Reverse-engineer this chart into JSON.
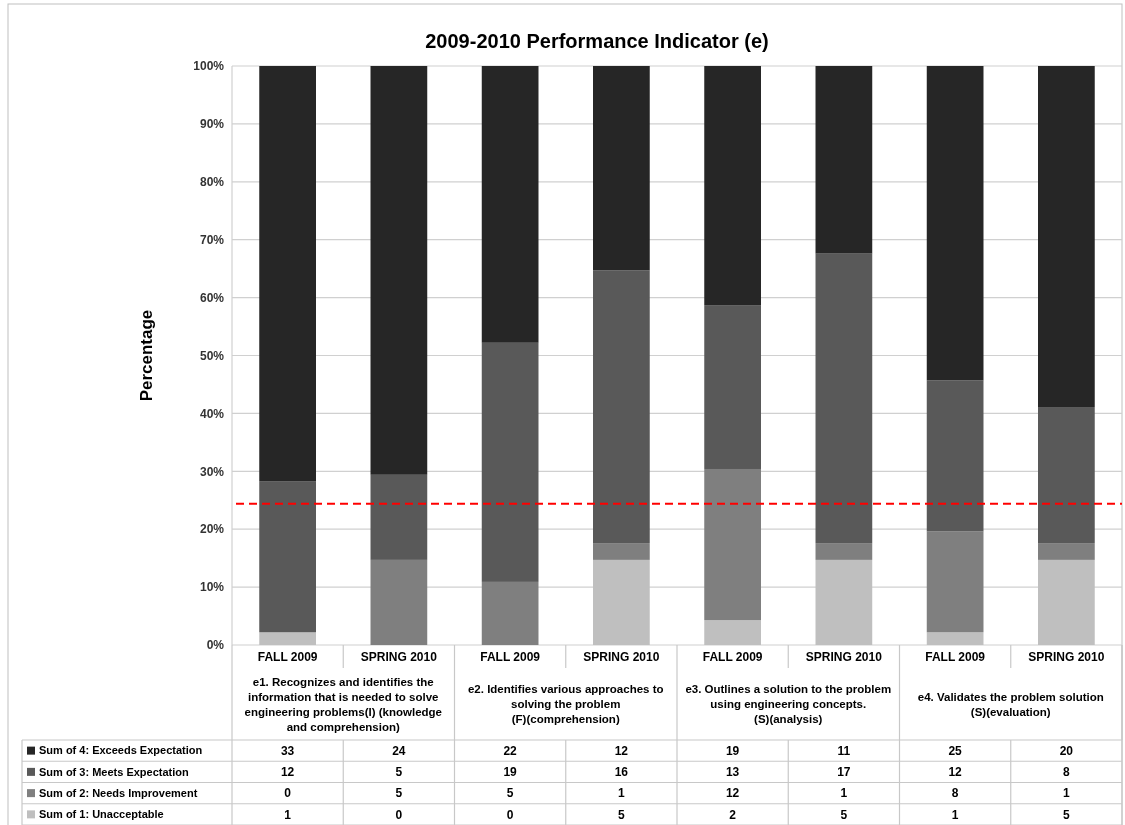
{
  "chart_data": [
    {
      "type": "bar",
      "title": "2009-2010 Performance Indicator (e)",
      "ylabel": "Percentage",
      "categories": [
        "FALL 2009",
        "SPRING 2010",
        "FALL 2009",
        "SPRING 2010",
        "FALL 2009",
        "SPRING 2010",
        "FALL 2009",
        "SPRING 2010"
      ],
      "annotations": [
        "e1. Recognizes and identifies the information that is needed to solve engineering problems(I) (knowledge and comprehension)",
        "e2. Identifies various approaches to solving the problem (F)(comprehension)",
        "e3. Outlines a solution to the problem using engineering concepts. (S)(analysis)",
        "e4. Validates the problem solution (S)(evaluation)"
      ],
      "series": [
        {
          "name": "Sum of 1: Unacceptable",
          "color": "#bfbfbf",
          "values": [
            2.2,
            0,
            0,
            14.7,
            4.3,
            14.7,
            2.2,
            14.7
          ]
        },
        {
          "name": "Sum of 2: Needs Improvement",
          "color": "#7f7f7f",
          "values": [
            0,
            14.7,
            10.9,
            2.9,
            26.1,
            2.9,
            17.4,
            2.9
          ]
        },
        {
          "name": "Sum of 3: Meets Expectation",
          "color": "#595959",
          "values": [
            26.1,
            14.7,
            41.3,
            47.1,
            28.3,
            50.0,
            26.1,
            23.5
          ]
        },
        {
          "name": "Sum of 4: Exceeds Expectation",
          "color": "#262626",
          "values": [
            71.7,
            70.6,
            47.8,
            35.3,
            41.3,
            32.4,
            54.3,
            58.9
          ]
        }
      ],
      "stacked": true,
      "ylim": [
        0,
        100
      ],
      "yticks": [
        {
          "value": 0,
          "label": "0%"
        },
        {
          "value": 10,
          "label": "10%"
        },
        {
          "value": 20,
          "label": "20%"
        },
        {
          "value": 30,
          "label": "30%"
        },
        {
          "value": 40,
          "label": "40%"
        },
        {
          "value": 50,
          "label": "50%"
        },
        {
          "value": 60,
          "label": "60%"
        },
        {
          "value": 70,
          "label": "70%"
        },
        {
          "value": 80,
          "label": "80%"
        },
        {
          "value": 90,
          "label": "90%"
        },
        {
          "value": 100,
          "label": "100%"
        }
      ],
      "grid": "y",
      "legend": "bottom left",
      "ref_lines": [
        {
          "axis": "y",
          "value": 24.4,
          "color": "#ff0000",
          "line_style": "dashed"
        }
      ]
    },
    {
      "type": "other",
      "annotations": [
        "33",
        "24",
        "22",
        "12",
        "19",
        "11",
        "25",
        "20",
        "12",
        "5",
        "19",
        "16",
        "13",
        "17",
        "12",
        "8",
        "0",
        "5",
        "5",
        "1",
        "12",
        "1",
        "8",
        "1",
        "1",
        "0",
        "0",
        "5",
        "2",
        "5",
        "1",
        "5"
      ]
    }
  ]
}
